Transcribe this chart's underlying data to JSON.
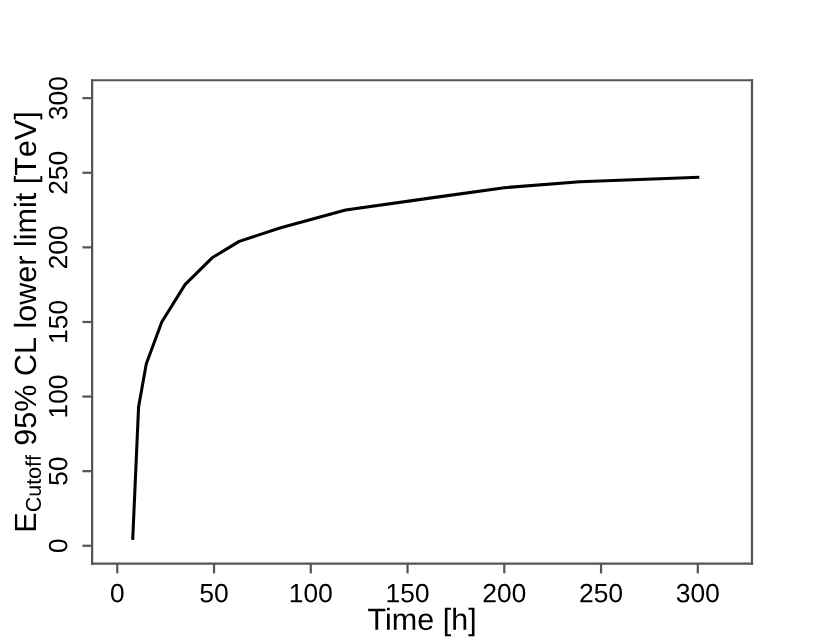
{
  "chart_data": {
    "type": "line",
    "xlabel": "Time [h]",
    "ylabel": "E$_{Cutoff}$ 95% CL lower limit [TeV]",
    "x": [
      8,
      11,
      15,
      23,
      35,
      49,
      63,
      84,
      118,
      167,
      200,
      239,
      300
    ],
    "series": [
      {
        "color": "#000000",
        "values": [
          5,
          93,
          122,
          150,
          175,
          193,
          204,
          213,
          225,
          234,
          240,
          244,
          247
        ]
      }
    ],
    "xlim": [
      -13,
      328
    ],
    "ylim": [
      -12,
      312
    ],
    "xticks": [
      0,
      50,
      100,
      150,
      200,
      250,
      300
    ],
    "yticks": [
      0,
      50,
      100,
      150,
      200,
      250,
      300
    ],
    "grid": false,
    "legend": false,
    "marker": "none",
    "line_style": "solid"
  }
}
